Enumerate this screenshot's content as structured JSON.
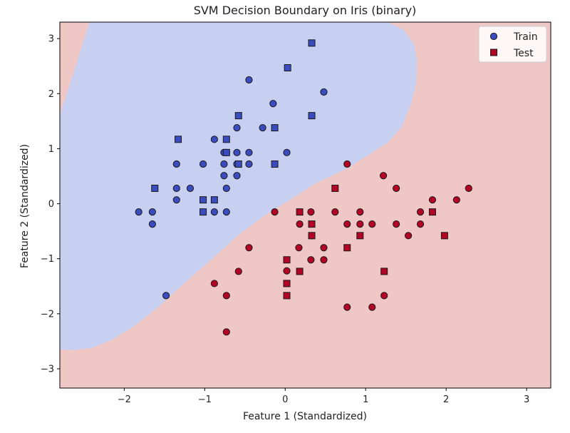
{
  "chart_data": {
    "type": "scatter",
    "title": "SVM Decision Boundary on Iris (binary)",
    "xlabel": "Feature 1 (Standardized)",
    "ylabel": "Feature 2 (Standardized)",
    "xlim": [
      -2.8,
      3.3
    ],
    "ylim": [
      -3.35,
      3.3
    ],
    "xticks": [
      -2,
      -1,
      0,
      1,
      2,
      3
    ],
    "xtick_labels": [
      "−2",
      "−1",
      "0",
      "1",
      "2",
      "3"
    ],
    "yticks": [
      -3,
      -2,
      -1,
      0,
      1,
      2,
      3
    ],
    "ytick_labels": [
      "−3",
      "−2",
      "−1",
      "0",
      "1",
      "2",
      "3"
    ],
    "grid": false,
    "legend_position": "top-right",
    "legend": [
      "Train",
      "Test"
    ],
    "colors": {
      "class0_point": "#3b4cc0",
      "class1_point": "#b40426",
      "class0_region": "#c8d0f1",
      "class1_region": "#efc7c5",
      "legend_marker": "#3b4cc0",
      "legend_test_marker": "#b40426",
      "edge": "#1a1a1a"
    },
    "decision_boundary": {
      "x": [
        -2.8,
        -2.62,
        -2.4,
        -2.15,
        -1.87,
        -1.57,
        -1.25,
        -0.92,
        -0.59,
        -0.26,
        0.07,
        0.38,
        0.78,
        1.05,
        1.28,
        1.45,
        1.56,
        1.63,
        1.64,
        1.6,
        1.48,
        1.28,
        1.0,
        0.7,
        0.4,
        0.17,
        -0.05,
        -0.26,
        -0.48,
        -0.72,
        -0.99,
        -1.27,
        -1.56,
        -1.87,
        -2.15,
        -2.43,
        -2.8
      ],
      "y": [
        -2.65,
        -2.66,
        -2.62,
        -2.47,
        -2.22,
        -1.87,
        -1.44,
        -1.02,
        -0.58,
        -0.22,
        0.08,
        0.37,
        0.65,
        0.9,
        1.12,
        1.4,
        1.8,
        2.2,
        2.6,
        2.9,
        3.15,
        3.3,
        3.3,
        3.3,
        3.3,
        3.3,
        3.3,
        3.3,
        3.3,
        3.3,
        3.3,
        3.3,
        3.3,
        3.3,
        3.3,
        3.3,
        1.6
      ]
    },
    "series": [
      {
        "name": "Train",
        "marker": "circle",
        "class0": {
          "x": [
            -1.82,
            -1.65,
            -1.65,
            -1.35,
            -1.35,
            -1.35,
            -1.18,
            -1.02,
            -0.88,
            -0.88,
            -0.76,
            -0.76,
            -0.76,
            -0.73,
            -0.73,
            -0.73,
            -0.6,
            -0.6,
            -0.6,
            -0.6,
            -0.45,
            -0.45,
            -0.45,
            -0.28,
            -0.15,
            0.02,
            0.48,
            -1.48
          ],
          "y": [
            -0.15,
            -0.15,
            -0.37,
            0.72,
            0.28,
            0.07,
            0.28,
            0.72,
            1.17,
            -0.15,
            0.93,
            0.72,
            0.51,
            0.28,
            -0.15,
            0.93,
            1.38,
            0.93,
            0.72,
            0.51,
            0.93,
            0.72,
            2.25,
            1.38,
            1.82,
            0.93,
            2.03,
            -1.67
          ]
        },
        "class1": {
          "x": [
            0.77,
            1.22,
            1.38,
            1.83,
            2.13,
            2.28,
            -0.13,
            0.18,
            0.32,
            0.62,
            0.77,
            0.93,
            0.93,
            1.08,
            1.38,
            1.68,
            1.68,
            1.53,
            0.17,
            0.32,
            0.48,
            0.48,
            0.33,
            0.02,
            0.02,
            -0.45,
            -0.58,
            -0.88,
            -0.73,
            -0.73,
            0.77,
            1.08,
            1.23
          ],
          "y": [
            0.72,
            0.51,
            0.28,
            0.07,
            0.07,
            0.28,
            -0.15,
            -0.37,
            -0.15,
            -0.15,
            -0.37,
            -0.15,
            -0.37,
            -0.37,
            -0.37,
            -0.15,
            -0.37,
            -0.58,
            -0.8,
            -1.02,
            -0.8,
            -1.02,
            -0.58,
            -1.22,
            -1.45,
            -0.8,
            -1.23,
            -1.45,
            -1.67,
            -2.33,
            -1.88,
            -1.88,
            -1.67
          ]
        }
      },
      {
        "name": "Test",
        "marker": "square",
        "class0": {
          "x": [
            0.33,
            0.03,
            -0.58,
            -0.13,
            0.33,
            -1.33,
            -0.73,
            -0.73,
            -0.58,
            -1.62,
            -0.88,
            -1.02,
            -1.02,
            -0.13
          ],
          "y": [
            2.92,
            2.47,
            1.6,
            1.38,
            1.6,
            1.17,
            1.17,
            0.93,
            0.72,
            0.28,
            0.07,
            0.07,
            -0.15,
            0.72
          ]
        },
        "class1": {
          "x": [
            0.62,
            0.18,
            0.33,
            0.33,
            0.93,
            1.83,
            1.98,
            0.77,
            0.02,
            0.18,
            0.02,
            0.02,
            1.23
          ],
          "y": [
            0.28,
            -0.15,
            -0.37,
            -0.58,
            -0.58,
            -0.15,
            -0.58,
            -0.8,
            -1.02,
            -1.23,
            -1.45,
            -1.67,
            -1.23
          ]
        }
      }
    ]
  }
}
